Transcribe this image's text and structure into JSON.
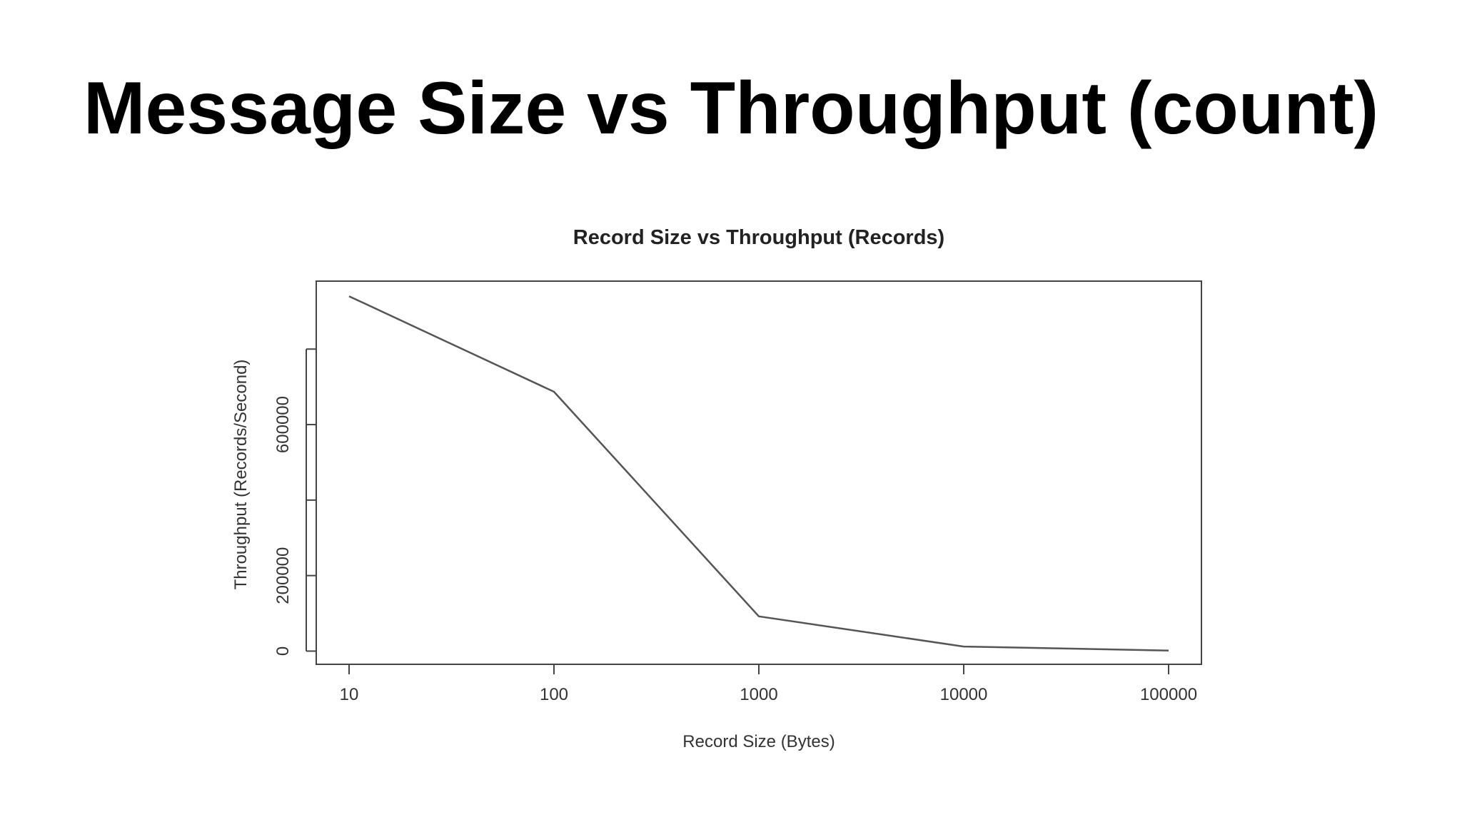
{
  "slide": {
    "title": "Message Size vs Throughput (count)"
  },
  "chart_data": {
    "type": "line",
    "title": "Record Size vs Throughput (Records)",
    "xlabel": "Record Size (Bytes)",
    "ylabel": "Throughput (Records/Second)",
    "x_scale": "log",
    "x": [
      10,
      100,
      1000,
      10000,
      100000
    ],
    "x_tick_labels": [
      "10",
      "100",
      "1000",
      "10000",
      "100000"
    ],
    "y_ticks": [
      0,
      200000,
      400000,
      600000,
      800000
    ],
    "y_tick_labels": [
      "0",
      "200000",
      "",
      "600000",
      ""
    ],
    "series": [
      {
        "values": [
          940000,
          687000,
          92000,
          12000,
          1500
        ]
      }
    ],
    "ylim": [
      -35000,
      980000
    ],
    "grid": false,
    "line_color": "#555555"
  }
}
